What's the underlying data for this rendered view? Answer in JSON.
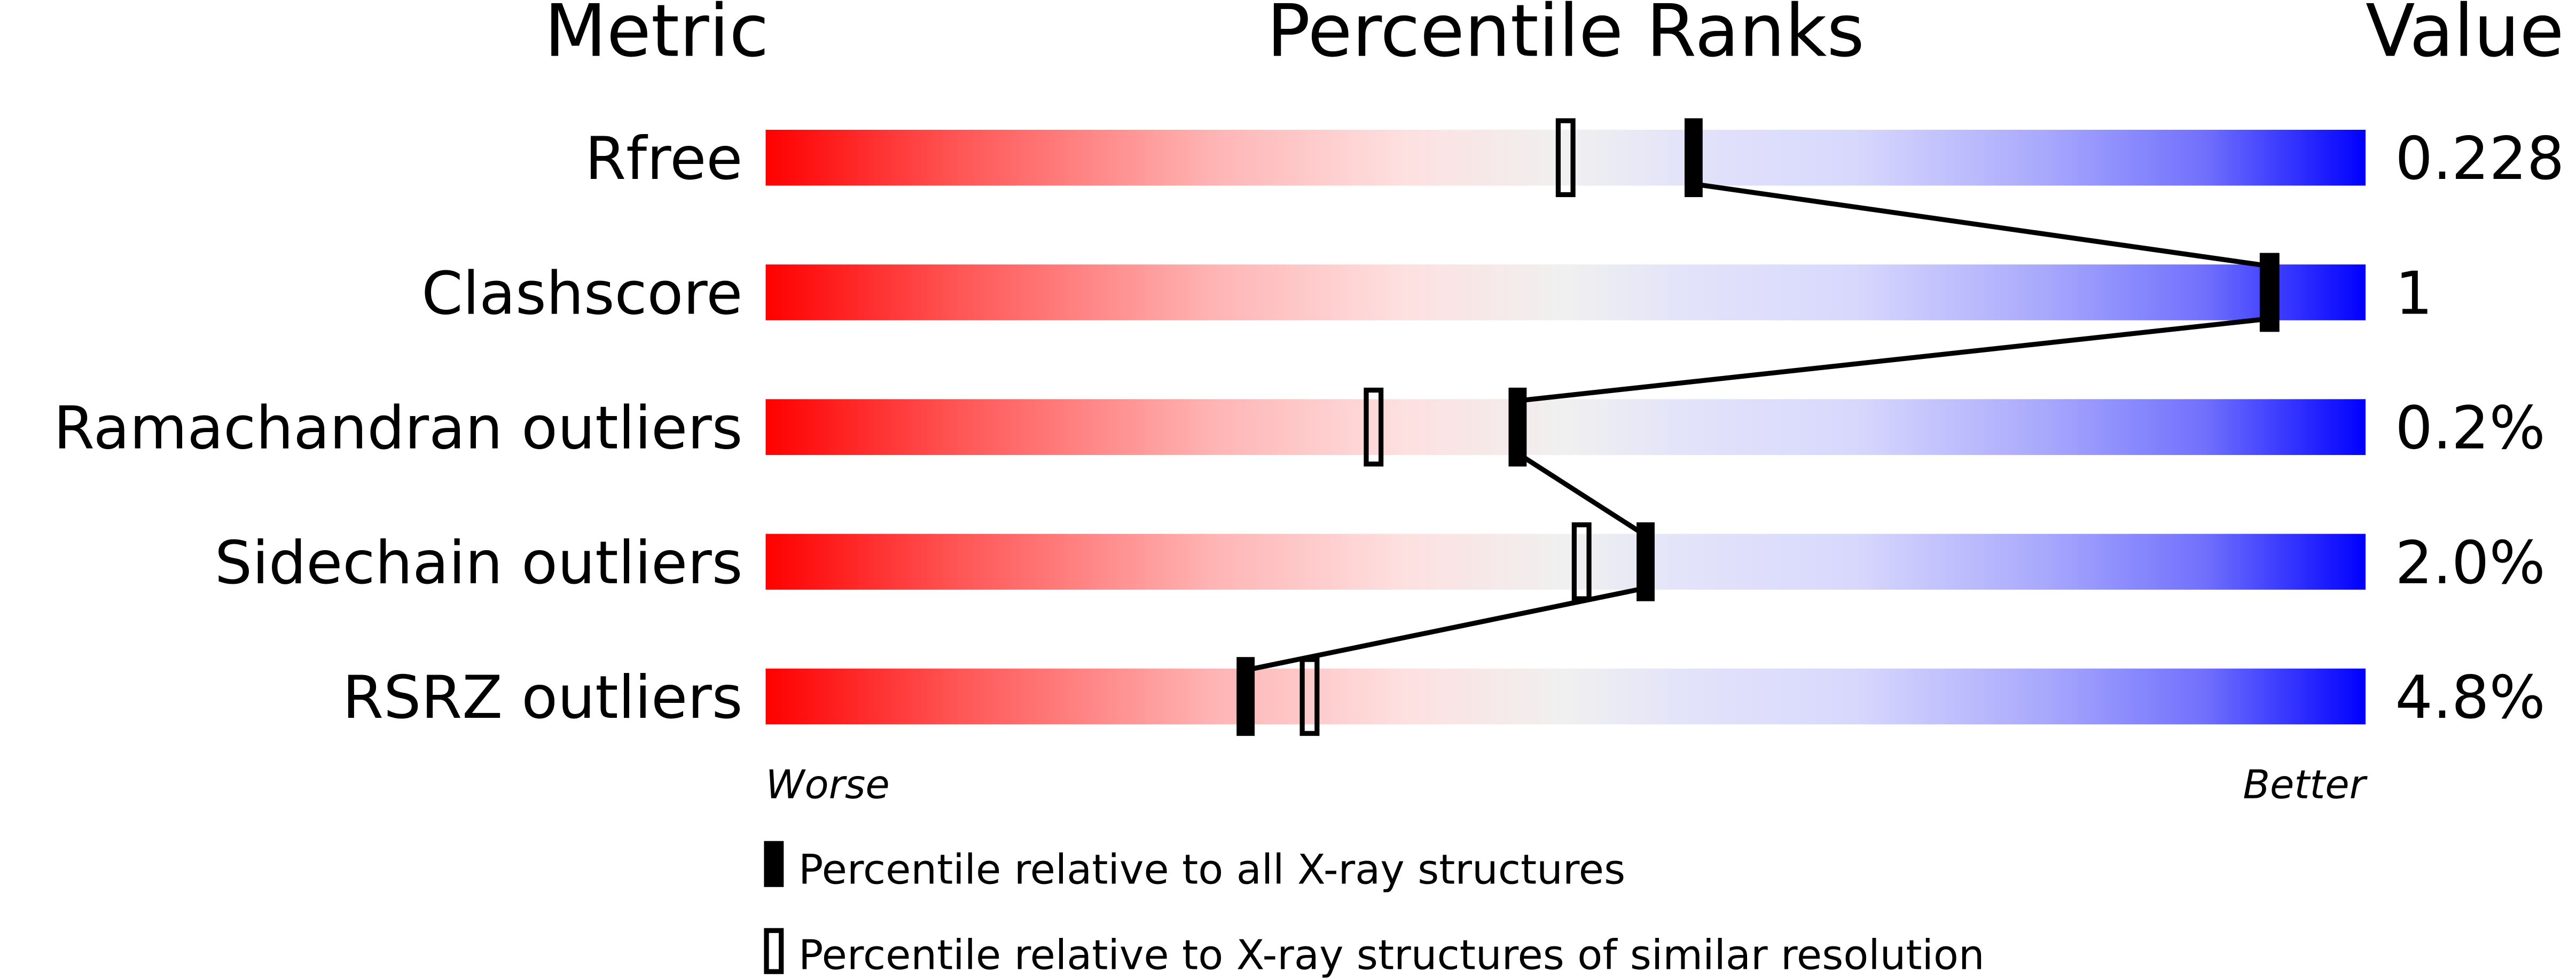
{
  "chart_data": {
    "type": "table",
    "headers": {
      "metric": "Metric",
      "percentile": "Percentile Ranks",
      "value": "Value"
    },
    "axis_ends": {
      "left": "Worse",
      "right": "Better"
    },
    "percentile_range": [
      0,
      100
    ],
    "rows": [
      {
        "metric": "Rfree",
        "value": "0.228",
        "percentile_all": 58,
        "percentile_similar": 50
      },
      {
        "metric": "Clashscore",
        "value": "1",
        "percentile_all": 94,
        "percentile_similar": 94
      },
      {
        "metric": "Ramachandran outliers",
        "value": "0.2%",
        "percentile_all": 47,
        "percentile_similar": 38
      },
      {
        "metric": "Sidechain outliers",
        "value": "2.0%",
        "percentile_all": 55,
        "percentile_similar": 51
      },
      {
        "metric": "RSRZ outliers",
        "value": "4.8%",
        "percentile_all": 30,
        "percentile_similar": 34
      }
    ],
    "legend": [
      {
        "marker": "filled",
        "label": "Percentile relative to all X-ray structures"
      },
      {
        "marker": "open",
        "label": "Percentile relative to X-ray structures of similar resolution"
      }
    ],
    "colors": {
      "worse": "#ff0000",
      "middle": "#f0f0f0",
      "better": "#0000ff",
      "marker": "#000000"
    }
  }
}
